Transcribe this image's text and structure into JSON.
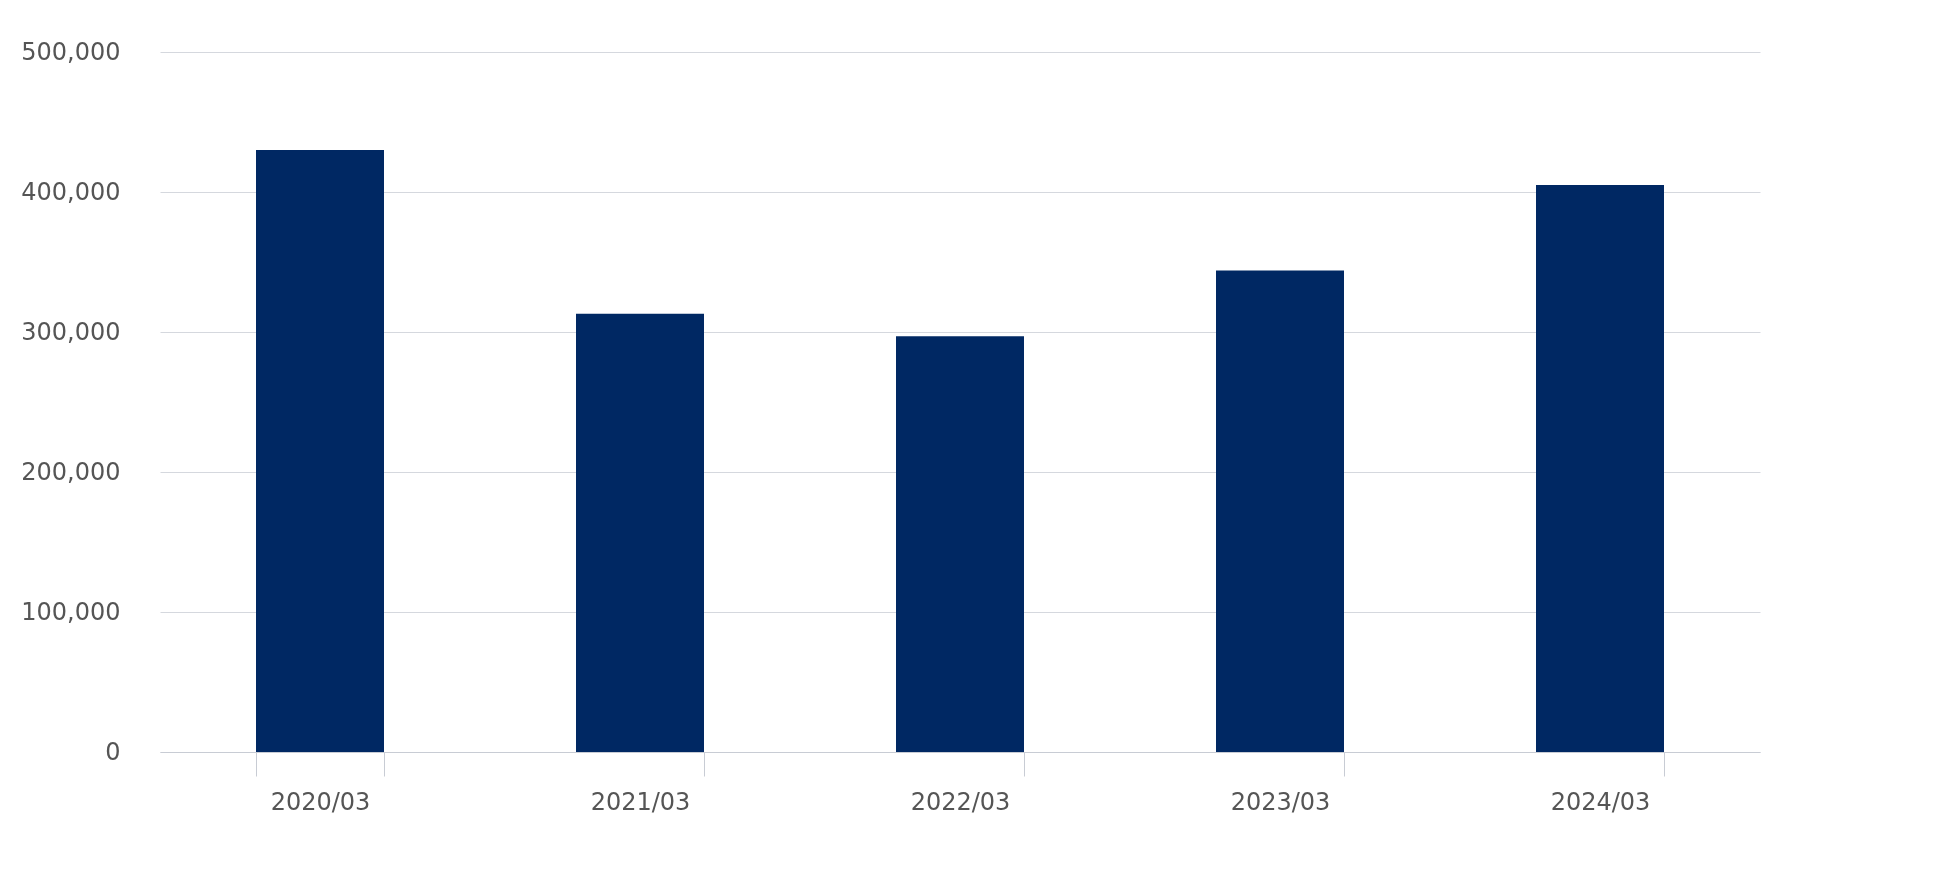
{
  "chart_data": {
    "type": "bar",
    "categories": [
      "2020/03",
      "2021/03",
      "2022/03",
      "2023/03",
      "2024/03"
    ],
    "values": [
      430000,
      313000,
      297000,
      344000,
      405000
    ],
    "color": "#002863",
    "ylim": [
      0,
      500000
    ],
    "yticks": [
      0,
      {
        "value": 100000,
        "label": "100,000"
      },
      {
        "value": 200000,
        "label": "200,000"
      },
      {
        "value": 300000,
        "label": "300,000"
      },
      {
        "value": 400000,
        "label": "400,000"
      },
      {
        "value": 500000,
        "label": "500,000"
      }
    ],
    "grid": "y"
  }
}
